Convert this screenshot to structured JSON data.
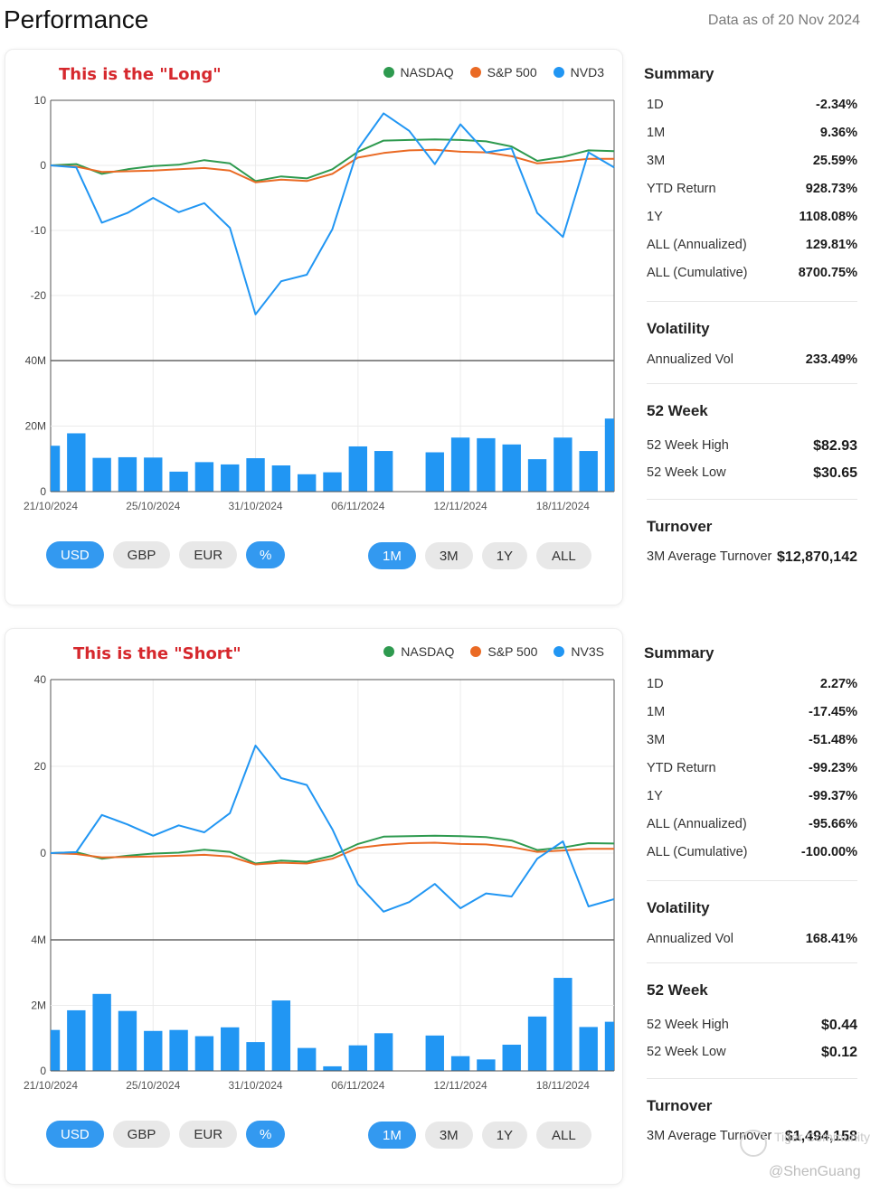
{
  "header": {
    "title": "Performance",
    "as_of": "Data as of 20 Nov 2024"
  },
  "colors": {
    "nasdaq": "#2e9a4f",
    "sp500": "#ea6a24",
    "fund": "#2196f3",
    "annotation": "#d6282d",
    "accent": "#3399f0"
  },
  "x_ticks": [
    "21/10/2024",
    "25/10/2024",
    "31/10/2024",
    "06/11/2024",
    "12/11/2024",
    "18/11/2024"
  ],
  "currency_buttons": [
    "USD",
    "GBP",
    "EUR",
    "%"
  ],
  "range_buttons": [
    "1M",
    "3M",
    "1Y",
    "ALL"
  ],
  "watermark": {
    "community": "Tiger Community",
    "handle": "@ShenGuang"
  },
  "cards": [
    {
      "annotation": "This is the \"Long\"",
      "legend": [
        "NASDAQ",
        "S&P 500",
        "NVD3"
      ],
      "summary": {
        "title": "Summary",
        "rows": [
          {
            "label": "1D",
            "value": "-2.34%"
          },
          {
            "label": "1M",
            "value": "9.36%"
          },
          {
            "label": "3M",
            "value": "25.59%"
          },
          {
            "label": "YTD Return",
            "value": "928.73%"
          },
          {
            "label": "1Y",
            "value": "1108.08%"
          },
          {
            "label": "ALL (Annualized)",
            "value": "129.81%"
          },
          {
            "label": "ALL (Cumulative)",
            "value": "8700.75%"
          }
        ]
      },
      "volatility": {
        "title": "Volatility",
        "label": "Annualized Vol",
        "value": "233.49%"
      },
      "week52": {
        "title": "52 Week",
        "high_label": "52 Week High",
        "high_value": "$82.93",
        "low_label": "52 Week Low",
        "low_value": "$30.65"
      },
      "turnover": {
        "title": "Turnover",
        "label": "3M Average Turnover",
        "value": "$12,870,142"
      }
    },
    {
      "annotation": "This is the \"Short\"",
      "legend": [
        "NASDAQ",
        "S&P 500",
        "NV3S"
      ],
      "summary": {
        "title": "Summary",
        "rows": [
          {
            "label": "1D",
            "value": "2.27%"
          },
          {
            "label": "1M",
            "value": "-17.45%"
          },
          {
            "label": "3M",
            "value": "-51.48%"
          },
          {
            "label": "YTD Return",
            "value": "-99.23%"
          },
          {
            "label": "1Y",
            "value": "-99.37%"
          },
          {
            "label": "ALL (Annualized)",
            "value": "-95.66%"
          },
          {
            "label": "ALL (Cumulative)",
            "value": "-100.00%"
          }
        ]
      },
      "volatility": {
        "title": "Volatility",
        "label": "Annualized Vol",
        "value": "168.41%"
      },
      "week52": {
        "title": "52 Week",
        "high_label": "52 Week High",
        "high_value": "$0.44",
        "low_label": "52 Week Low",
        "low_value": "$0.12"
      },
      "turnover": {
        "title": "Turnover",
        "label": "3M Average Turnover",
        "value": "$1,494,158"
      }
    }
  ],
  "chart_data": [
    {
      "type": "line",
      "title": "This is the \"Long\"",
      "x": [
        "21/10/2024",
        "22/10",
        "23/10",
        "24/10",
        "25/10",
        "28/10",
        "29/10",
        "30/10",
        "31/10",
        "01/11",
        "04/11",
        "05/11",
        "06/11",
        "07/11",
        "08/11",
        "11/11",
        "12/11",
        "13/11",
        "14/11",
        "15/11",
        "18/11",
        "19/11",
        "20/11"
      ],
      "x_tick_labels": [
        "21/10/2024",
        "25/10/2024",
        "31/10/2024",
        "06/11/2024",
        "12/11/2024",
        "18/11/2024"
      ],
      "ylim": [
        -30,
        10
      ],
      "y_ticks": [
        10,
        0,
        -10,
        -20
      ],
      "series": [
        {
          "name": "NASDAQ",
          "values": [
            0,
            0.2,
            -1.3,
            -0.6,
            -0.1,
            0.1,
            0.8,
            0.3,
            -2.4,
            -1.7,
            -2.0,
            -0.6,
            2.1,
            3.8,
            3.9,
            4.0,
            3.9,
            3.7,
            2.9,
            0.7,
            1.3,
            2.3,
            2.2
          ]
        },
        {
          "name": "S&P 500",
          "values": [
            0,
            -0.2,
            -1.0,
            -0.9,
            -0.8,
            -0.6,
            -0.4,
            -0.8,
            -2.6,
            -2.2,
            -2.4,
            -1.3,
            1.2,
            1.9,
            2.3,
            2.4,
            2.1,
            2.0,
            1.4,
            0.3,
            0.6,
            1.0,
            1.0
          ]
        },
        {
          "name": "NVD3",
          "values": [
            0,
            -0.3,
            -8.8,
            -7.3,
            -5.0,
            -7.2,
            -5.8,
            -9.6,
            -22.9,
            -17.8,
            -16.8,
            -9.8,
            2.5,
            8.0,
            5.3,
            0.2,
            6.3,
            2.0,
            2.6,
            -7.3,
            -11.0,
            2.0,
            -0.3
          ]
        }
      ],
      "volume": {
        "ylim": [
          0,
          40000000
        ],
        "y_ticks": [
          "40M",
          "20M",
          "0"
        ],
        "values": [
          14000000,
          17800000,
          10300000,
          10500000,
          10400000,
          6100000,
          9000000,
          8300000,
          10200000,
          8000000,
          5300000,
          5900000,
          13800000,
          12400000,
          0,
          12000000,
          16500000,
          16300000,
          14400000,
          9900000,
          16500000,
          12400000,
          22300000
        ]
      }
    },
    {
      "type": "line",
      "title": "This is the \"Short\"",
      "x": [
        "21/10/2024",
        "22/10",
        "23/10",
        "24/10",
        "25/10",
        "28/10",
        "29/10",
        "30/10",
        "31/10",
        "01/11",
        "04/11",
        "05/11",
        "06/11",
        "07/11",
        "08/11",
        "11/11",
        "12/11",
        "13/11",
        "14/11",
        "15/11",
        "18/11",
        "19/11",
        "20/11"
      ],
      "x_tick_labels": [
        "21/10/2024",
        "25/10/2024",
        "31/10/2024",
        "06/11/2024",
        "12/11/2024",
        "18/11/2024"
      ],
      "ylim": [
        -20,
        40
      ],
      "y_ticks": [
        40,
        20,
        0
      ],
      "series": [
        {
          "name": "NASDAQ",
          "values": [
            0,
            0.2,
            -1.3,
            -0.6,
            -0.1,
            0.1,
            0.8,
            0.3,
            -2.4,
            -1.7,
            -2.0,
            -0.6,
            2.1,
            3.8,
            3.9,
            4.0,
            3.9,
            3.7,
            2.9,
            0.7,
            1.3,
            2.3,
            2.2
          ]
        },
        {
          "name": "S&P 500",
          "values": [
            0,
            -0.2,
            -1.0,
            -0.9,
            -0.8,
            -0.6,
            -0.4,
            -0.8,
            -2.6,
            -2.2,
            -2.4,
            -1.3,
            1.2,
            1.9,
            2.3,
            2.4,
            2.1,
            2.0,
            1.4,
            0.3,
            0.6,
            1.0,
            1.0
          ]
        },
        {
          "name": "NV3S",
          "values": [
            0,
            0.2,
            8.8,
            6.6,
            4.0,
            6.4,
            4.8,
            9.2,
            24.8,
            17.3,
            15.7,
            5.5,
            -7.2,
            -13.5,
            -11.3,
            -7.1,
            -12.7,
            -9.3,
            -10.0,
            -1.3,
            2.7,
            -12.3,
            -10.6
          ]
        }
      ],
      "volume": {
        "ylim": [
          0,
          4000000
        ],
        "y_ticks": [
          "4M",
          "2M",
          "0"
        ],
        "values": [
          1250000,
          1850000,
          2350000,
          1830000,
          1220000,
          1250000,
          1060000,
          1330000,
          880000,
          2150000,
          700000,
          140000,
          780000,
          1150000,
          0,
          1080000,
          450000,
          350000,
          800000,
          1660000,
          2840000,
          1340000,
          1500000
        ]
      }
    }
  ]
}
